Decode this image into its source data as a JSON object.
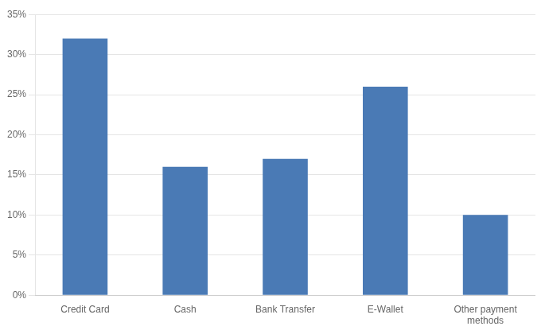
{
  "chart_data": {
    "type": "bar",
    "categories": [
      "Credit Card",
      "Cash",
      "Bank Transfer",
      "E-Wallet",
      "Other payment\nmethods"
    ],
    "values": [
      0.32,
      0.16,
      0.17,
      0.26,
      0.1
    ],
    "color": "#4a7ab5",
    "ylim": [
      0,
      0.35
    ],
    "yticks": [
      {
        "value": 0.0,
        "label": "0%"
      },
      {
        "value": 0.05,
        "label": "5%"
      },
      {
        "value": 0.1,
        "label": "10%"
      },
      {
        "value": 0.15,
        "label": "15%"
      },
      {
        "value": 0.2,
        "label": "20%"
      },
      {
        "value": 0.25,
        "label": "25%"
      },
      {
        "value": 0.3,
        "label": "30%"
      },
      {
        "value": 0.35,
        "label": "35%"
      }
    ],
    "grid": true
  }
}
